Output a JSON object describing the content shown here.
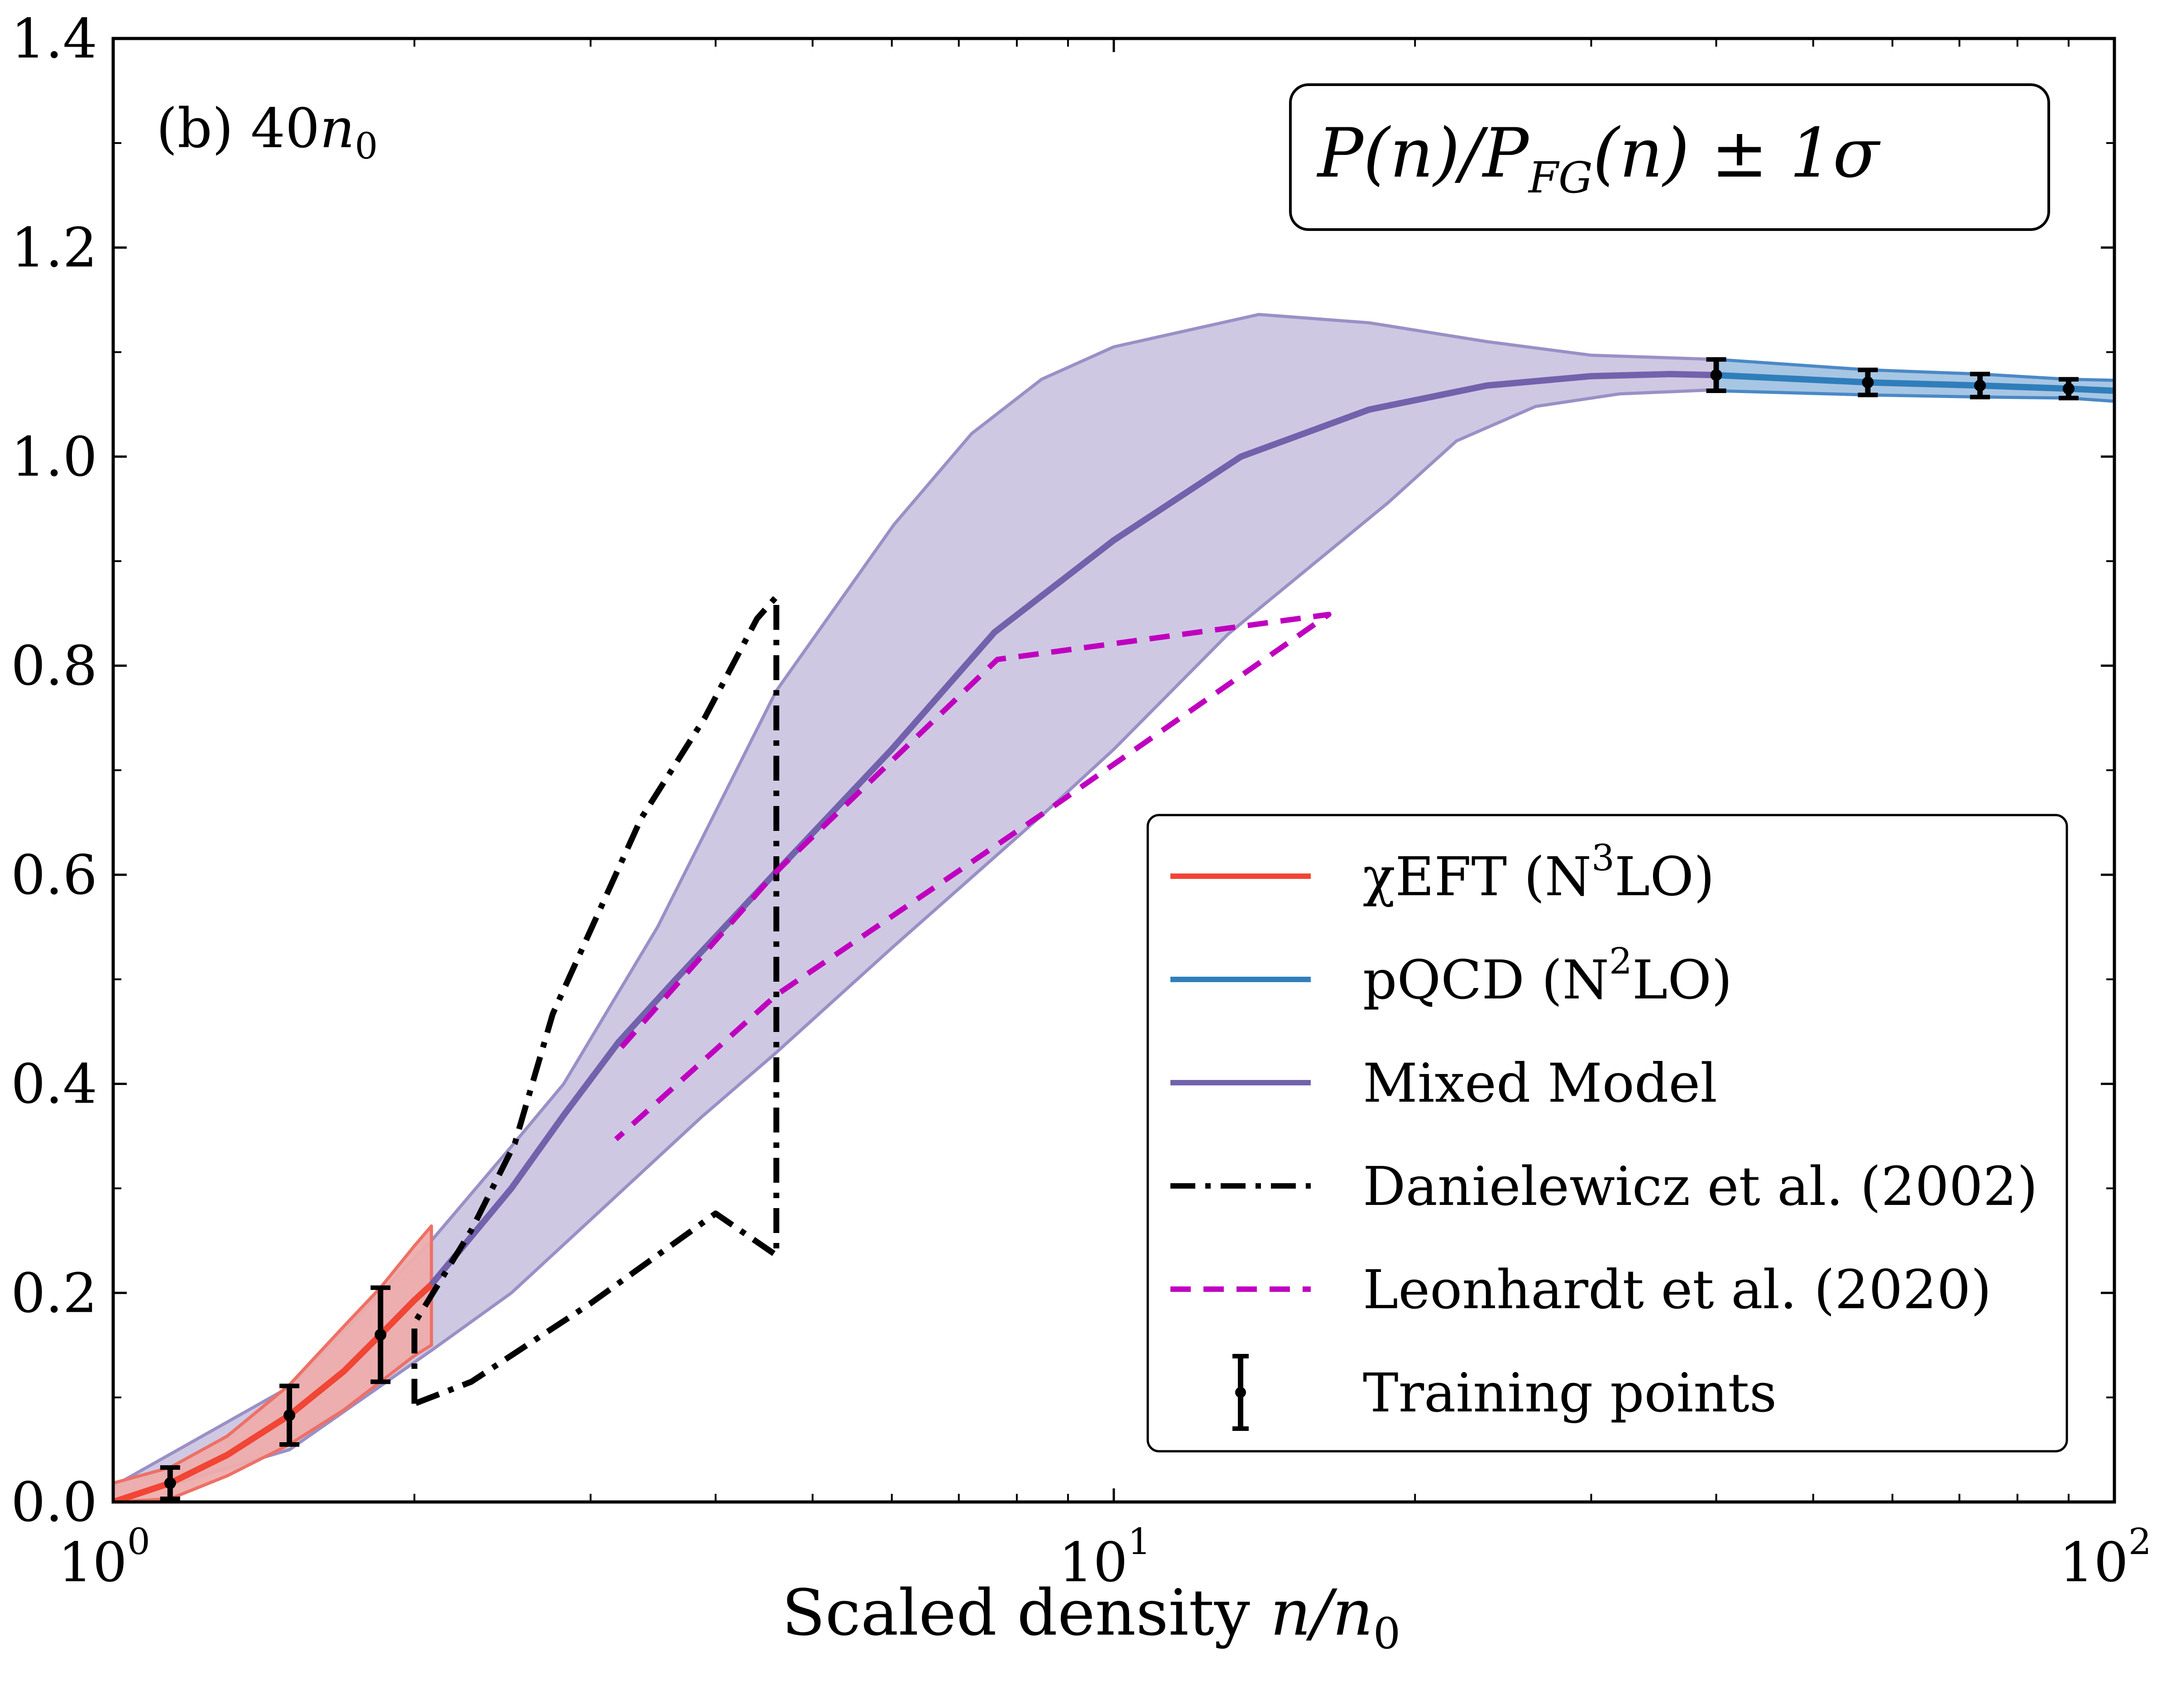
{
  "chart_data": {
    "type": "line",
    "title": "P(n)/P_FG(n) ± 1σ",
    "panel_label": "(b) 40n₀",
    "xlabel": "Scaled density n/n₀",
    "ylabel": "",
    "xscale": "log",
    "xlim": [
      1,
      100
    ],
    "ylim": [
      0,
      1.4
    ],
    "grid": false,
    "legend_position": "lower-right",
    "x_ticks": [
      {
        "value": 1,
        "label": "10",
        "sup": "0"
      },
      {
        "value": 10,
        "label": "10",
        "sup": "1"
      },
      {
        "value": 100,
        "label": "10",
        "sup": "2"
      }
    ],
    "y_ticks": [
      {
        "value": 0.0,
        "label": "0.0"
      },
      {
        "value": 0.2,
        "label": "0.2"
      },
      {
        "value": 0.4,
        "label": "0.4"
      },
      {
        "value": 0.6,
        "label": "0.6"
      },
      {
        "value": 0.8,
        "label": "0.8"
      },
      {
        "value": 1.0,
        "label": "1.0"
      },
      {
        "value": 1.2,
        "label": "1.2"
      },
      {
        "value": 1.4,
        "label": "1.4"
      }
    ],
    "y_minor_ticks": [
      0.1,
      0.3,
      0.5,
      0.7,
      0.9,
      1.1,
      1.3
    ],
    "bands": [
      {
        "name": "Mixed Model ±1σ",
        "fill": "#CCC5E0",
        "edge": "#9A90C6",
        "upper": [
          [
            1.0,
            0.015
          ],
          [
            1.5,
            0.11
          ],
          [
            2.08,
            0.25
          ],
          [
            2.5,
            0.34
          ],
          [
            2.82,
            0.4
          ],
          [
            3.5,
            0.55
          ],
          [
            4.6,
            0.776
          ],
          [
            6.03,
            0.935
          ],
          [
            7.21,
            1.022
          ],
          [
            8.47,
            1.074
          ],
          [
            10,
            1.105
          ],
          [
            13.96,
            1.136
          ],
          [
            18,
            1.128
          ],
          [
            23.6,
            1.11
          ],
          [
            30,
            1.097
          ],
          [
            40,
            1.093
          ]
        ],
        "lower": [
          [
            1.0,
            0.0
          ],
          [
            1.5,
            0.05
          ],
          [
            2.08,
            0.145
          ],
          [
            2.5,
            0.2
          ],
          [
            3.0,
            0.27
          ],
          [
            3.87,
            0.368
          ],
          [
            4.6,
            0.43
          ],
          [
            6,
            0.53
          ],
          [
            8.57,
            0.661
          ],
          [
            10,
            0.72
          ],
          [
            13,
            0.83
          ],
          [
            18.8,
            0.956
          ],
          [
            22,
            1.015
          ],
          [
            26.4,
            1.048
          ],
          [
            32,
            1.06
          ],
          [
            40,
            1.064
          ]
        ]
      },
      {
        "name": "χEFT (N3LO) ±1σ",
        "fill": "#EDADAC",
        "edge": "#EE7066",
        "upper": [
          [
            1.0,
            0.018
          ],
          [
            1.14,
            0.033
          ],
          [
            1.3,
            0.063
          ],
          [
            1.5,
            0.112
          ],
          [
            1.7,
            0.168
          ],
          [
            1.85,
            0.205
          ],
          [
            2.0,
            0.245
          ],
          [
            2.08,
            0.264
          ]
        ],
        "lower": [
          [
            1.0,
            0.0
          ],
          [
            1.14,
            0.003
          ],
          [
            1.3,
            0.025
          ],
          [
            1.5,
            0.055
          ],
          [
            1.7,
            0.088
          ],
          [
            1.85,
            0.115
          ],
          [
            2.0,
            0.14
          ],
          [
            2.08,
            0.15
          ]
        ]
      },
      {
        "name": "pQCD (N2LO) ±1σ",
        "fill": "#A2C3E3",
        "edge": "#4A89C6",
        "upper": [
          [
            40,
            1.093
          ],
          [
            56.7,
            1.083
          ],
          [
            73.4,
            1.079
          ],
          [
            90,
            1.074
          ],
          [
            100,
            1.073
          ]
        ],
        "lower": [
          [
            40,
            1.063
          ],
          [
            56.7,
            1.059
          ],
          [
            73.4,
            1.057
          ],
          [
            90,
            1.056
          ],
          [
            100,
            1.053
          ]
        ]
      }
    ],
    "series": [
      {
        "name": "χEFT (N³LO)",
        "color": "#F14535",
        "style": "solid",
        "points": [
          [
            1.0,
            0.0
          ],
          [
            1.14,
            0.018
          ],
          [
            1.3,
            0.045
          ],
          [
            1.5,
            0.083
          ],
          [
            1.7,
            0.125
          ],
          [
            1.85,
            0.16
          ],
          [
            2.0,
            0.193
          ],
          [
            2.08,
            0.208
          ]
        ]
      },
      {
        "name": "Mixed Model",
        "color": "#7262AC",
        "style": "solid",
        "points": [
          [
            2.08,
            0.208
          ],
          [
            2.5,
            0.3
          ],
          [
            2.82,
            0.37
          ],
          [
            3.2,
            0.44
          ],
          [
            3.65,
            0.5
          ],
          [
            4.6,
            0.603
          ],
          [
            6,
            0.72
          ],
          [
            7.6,
            0.832
          ],
          [
            10,
            0.92
          ],
          [
            13.4,
            1.0
          ],
          [
            18,
            1.045
          ],
          [
            23.6,
            1.068
          ],
          [
            30,
            1.077
          ],
          [
            36,
            1.079
          ],
          [
            40,
            1.078
          ]
        ]
      },
      {
        "name": "pQCD (N²LO)",
        "color": "#2F7EBB",
        "style": "solid",
        "points": [
          [
            40,
            1.078
          ],
          [
            56.7,
            1.071
          ],
          [
            73.4,
            1.068
          ],
          [
            90,
            1.065
          ],
          [
            100,
            1.063
          ]
        ]
      },
      {
        "name": "Danielewicz et al. (2002)",
        "color": "#000000",
        "style": "dashdot",
        "points": [
          [
            2.0,
            0.094
          ],
          [
            2.0,
            0.171
          ],
          [
            2.28,
            0.26
          ],
          [
            2.52,
            0.343
          ],
          [
            2.75,
            0.467
          ],
          [
            3.37,
            0.654
          ],
          [
            3.9,
            0.75
          ],
          [
            4.4,
            0.845
          ],
          [
            4.6,
            0.866
          ],
          [
            4.6,
            0.236
          ],
          [
            4.0,
            0.276
          ],
          [
            3.0,
            0.19
          ],
          [
            2.28,
            0.115
          ],
          [
            2.0,
            0.094
          ]
        ]
      },
      {
        "name": "Leonhardt et al. (2020)",
        "color": "#BF00BF",
        "style": "dashed",
        "points": [
          [
            3.22,
            0.435
          ],
          [
            4.6,
            0.603
          ],
          [
            7.65,
            0.806
          ],
          [
            16.4,
            0.849
          ],
          [
            8.57,
            0.661
          ],
          [
            4.6,
            0.485
          ],
          [
            3.18,
            0.347
          ]
        ]
      }
    ],
    "training_points": {
      "name": "Training points",
      "color": "#000000",
      "points": [
        {
          "x": 1.14,
          "y": 0.018,
          "err": 0.015
        },
        {
          "x": 1.5,
          "y": 0.083,
          "err": 0.028
        },
        {
          "x": 1.85,
          "y": 0.16,
          "err": 0.045
        },
        {
          "x": 40,
          "y": 1.078,
          "err": 0.015
        },
        {
          "x": 56.7,
          "y": 1.071,
          "err": 0.012
        },
        {
          "x": 73.4,
          "y": 1.068,
          "err": 0.011
        },
        {
          "x": 90,
          "y": 1.065,
          "err": 0.009
        }
      ]
    },
    "legend": [
      {
        "label": "χEFT (N",
        "sup": "3",
        "label_tail": "LO)",
        "color": "#F14535",
        "style": "solid"
      },
      {
        "label": "pQCD (N",
        "sup": "2",
        "label_tail": "LO)",
        "color": "#2F7EBB",
        "style": "solid"
      },
      {
        "label": "Mixed Model",
        "sup": "",
        "label_tail": "",
        "color": "#7262AC",
        "style": "solid"
      },
      {
        "label": "Danielewicz et al. (2002)",
        "sup": "",
        "label_tail": "",
        "color": "#000000",
        "style": "dashdot"
      },
      {
        "label": "Leonhardt et al. (2020)",
        "sup": "",
        "label_tail": "",
        "color": "#BF00BF",
        "style": "dashed"
      },
      {
        "label": "Training points",
        "sup": "",
        "label_tail": "",
        "color": "#000000",
        "style": "errorbar"
      }
    ]
  },
  "labels": {
    "panel": "(b) 40",
    "panel_var": "n",
    "panel_sub": "0",
    "title_main": "P(n)/P",
    "title_sub": "FG",
    "title_tail": "(n) ± 1σ",
    "xlabel_main": "Scaled density ",
    "xlabel_var": "n/n",
    "xlabel_sub": "0"
  }
}
